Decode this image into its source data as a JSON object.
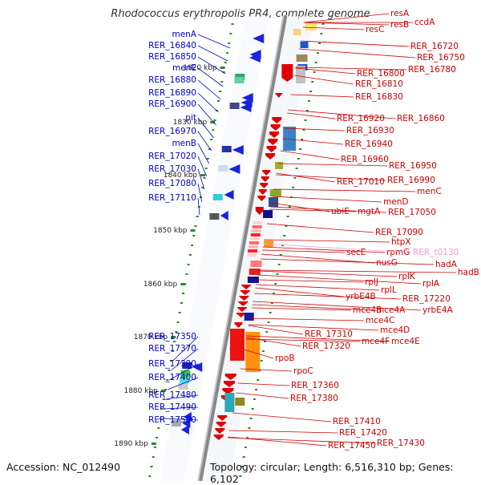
{
  "title": "Rhodococcus erythropolis PR4, complete genome",
  "accession": "Accession: NC_012490",
  "topology": "Topology: circular; Length: 6,516,310 bp; Genes: 6,102",
  "ticks": [
    "1820 kbp",
    "1830 kbp",
    "1840 kbp",
    "1850 kbp",
    "1860 kbp",
    "1870 kbp",
    "1880 kbp",
    "1890 kbp"
  ],
  "left_labels": [
    "menA",
    "RER_16840",
    "RER_16850",
    "menE",
    "RER_16880",
    "RER_16890",
    "RER_16900",
    "pit",
    "RER_16970",
    "menB",
    "RER_17020",
    "RER_17030",
    "RER_17080",
    "RER_17110",
    "RER_17350",
    "RER_17370",
    "RER_17390",
    "RER_17400",
    "RER_17480",
    "RER_17490",
    "RER_17500"
  ],
  "right_labels": [
    "resA",
    "ccdA",
    "resB",
    "resC",
    "RER_16720",
    "RER_16750",
    "RER_16780",
    "RER_16800",
    "RER_16810",
    "RER_16830",
    "RER_16920",
    "RER_16860",
    "RER_16930",
    "RER_16940",
    "RER_16960",
    "RER_16950",
    "RER_16990",
    "RER_17010",
    "menC",
    "menD",
    "ubiE",
    "mgtA",
    "RER_17050",
    "RER_17090",
    "htpX",
    "rpmG",
    "RER_t0130",
    "secE",
    "hadA",
    "nusG",
    "hadB",
    "rplK",
    "rplA",
    "rplJ",
    "rplL",
    "rpoB",
    "rpoC",
    "RER_17220",
    "yrbE4B",
    "mce4B",
    "mce4A",
    "yrbE4A",
    "mce4C",
    "mce4D",
    "RER_17310",
    "mce4F",
    "mce4E",
    "RER_17320",
    "RER_17360",
    "RER_17380",
    "RER_17410",
    "RER_17420",
    "RER_17430",
    "RER_17450"
  ],
  "colors": {
    "left_label": "#0000cc",
    "right_label": "#cc0000",
    "trna_label": "#f09ad0",
    "tick_label": "#222222",
    "backbone": "#888888",
    "dots": "#2a8a2a",
    "red_gene": "#e00000",
    "blue_gene": "#1a1aa0"
  }
}
